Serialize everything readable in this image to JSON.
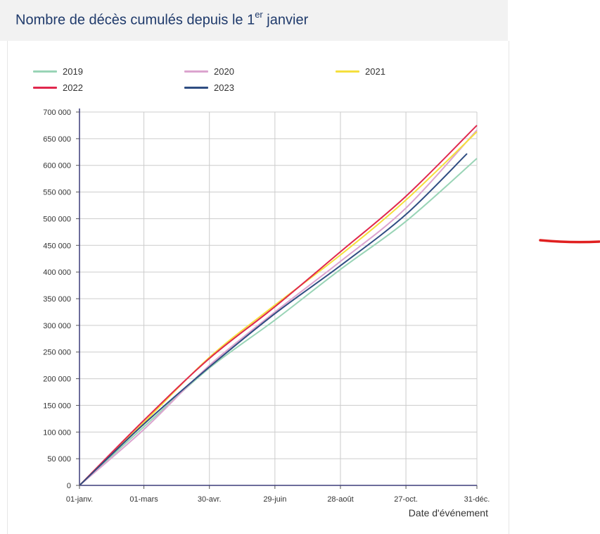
{
  "header": {
    "title_main": "Nombre de décès cumulés depuis le 1",
    "title_sup": "er",
    "title_end": " janvier"
  },
  "chart_data": {
    "type": "line",
    "title": "Nombre de décès cumulés depuis le 1er janvier",
    "xlabel": "Date d'événement",
    "ylabel": "",
    "x_ticks": [
      "01-janv.",
      "01-mars",
      "30-avr.",
      "29-juin",
      "28-août",
      "27-oct.",
      "31-déc."
    ],
    "x_tick_days": [
      0,
      59,
      119,
      179,
      239,
      299,
      364
    ],
    "xlim": [
      0,
      364
    ],
    "ylim": [
      0,
      700000
    ],
    "y_ticks": [
      0,
      50000,
      100000,
      150000,
      200000,
      250000,
      300000,
      350000,
      400000,
      450000,
      500000,
      550000,
      600000,
      650000,
      700000
    ],
    "y_tick_labels": [
      "0",
      "50 000",
      "100 000",
      "150 000",
      "200 000",
      "250 000",
      "300 000",
      "350 000",
      "400 000",
      "450 000",
      "500 000",
      "550 000",
      "600 000",
      "650 000",
      "700 000"
    ],
    "grid": true,
    "legend_position": "top",
    "series": [
      {
        "name": "2019",
        "color": "#99d4b6",
        "x": [
          0,
          59,
          119,
          179,
          239,
          299,
          364
        ],
        "values": [
          0,
          110000,
          220000,
          310000,
          405000,
          495000,
          613000
        ]
      },
      {
        "name": "2020",
        "color": "#dca4cf",
        "x": [
          0,
          59,
          119,
          179,
          239,
          299,
          364
        ],
        "values": [
          0,
          105000,
          225000,
          325000,
          420000,
          520000,
          666000
        ]
      },
      {
        "name": "2021",
        "color": "#f5df3e",
        "x": [
          0,
          59,
          119,
          179,
          239,
          299,
          364
        ],
        "values": [
          0,
          118000,
          240000,
          338000,
          432000,
          535000,
          663000
        ]
      },
      {
        "name": "2022",
        "color": "#e0284d",
        "x": [
          0,
          59,
          119,
          179,
          239,
          299,
          364
        ],
        "values": [
          0,
          122000,
          238000,
          335000,
          438000,
          542000,
          675000
        ]
      },
      {
        "name": "2023",
        "color": "#2f4d82",
        "x": [
          0,
          59,
          119,
          179,
          239,
          299,
          355
        ],
        "values": [
          0,
          115000,
          222000,
          322000,
          412000,
          508000,
          622000
        ]
      }
    ]
  },
  "annotation": {
    "color": "#e02020"
  }
}
